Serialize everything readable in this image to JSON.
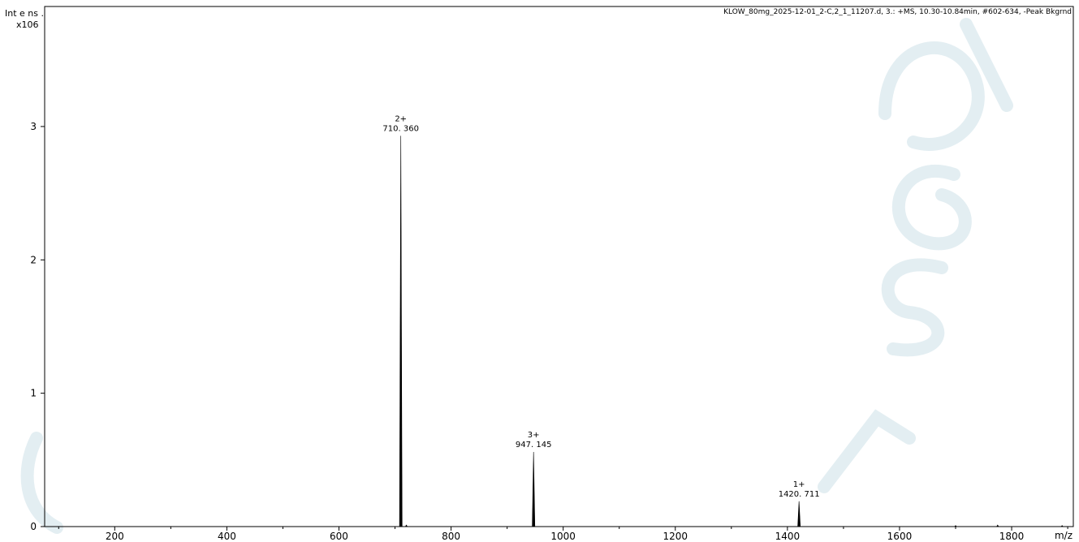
{
  "chart_data": {
    "type": "line",
    "header": "KLOW_80mg_2025-12-01_2-C,2_1_11207.d, 3.: +MS, 10.30-10.84min, #602-634, -Peak Bkgrnd",
    "ylabel": "Int e ns .",
    "yscale_label": "x106",
    "xlabel": "m/z",
    "xlim": [
      75,
      1910
    ],
    "ylim": [
      0,
      3.9
    ],
    "xticks": [
      200,
      400,
      600,
      800,
      1000,
      1200,
      1400,
      1600,
      1800
    ],
    "yticks": [
      0,
      1,
      2,
      3
    ],
    "series": [
      {
        "peaks": [
          {
            "x": 710.36,
            "y": 2.93,
            "charge": "2+",
            "label": "710. 360"
          },
          {
            "x": 947.145,
            "y": 0.56,
            "charge": "3+",
            "label": "947. 145"
          },
          {
            "x": 1420.711,
            "y": 0.19,
            "charge": "1+",
            "label": "1420. 711"
          },
          {
            "x": 720.2,
            "y": 0.012
          },
          {
            "x": 1700.0,
            "y": 0.008
          },
          {
            "x": 1775.0,
            "y": 0.012
          },
          {
            "x": 1890.0,
            "y": 0.008
          }
        ]
      }
    ]
  }
}
